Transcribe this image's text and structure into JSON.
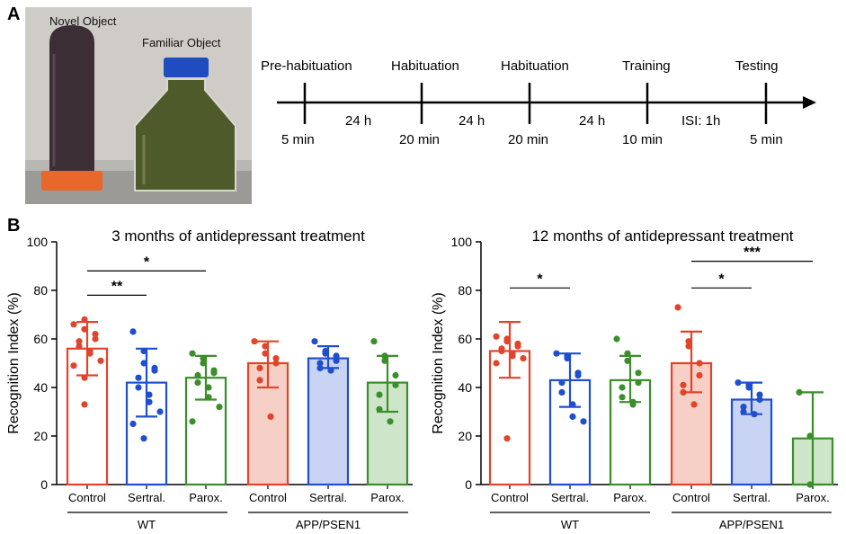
{
  "panel_a": {
    "label": "A",
    "photo": {
      "novel_label": "Novel Object",
      "familiar_label": "Familiar Object"
    },
    "timeline": {
      "events": [
        {
          "name": "Pre-habituation",
          "duration": "5 min"
        },
        {
          "name": "Habituation",
          "duration": "20 min"
        },
        {
          "name": "Habituation",
          "duration": "20 min"
        },
        {
          "name": "Training",
          "duration": "10 min"
        },
        {
          "name": "Testing",
          "duration": "5 min"
        }
      ],
      "intervals": [
        "24 h",
        "24 h",
        "24 h",
        "ISI: 1h"
      ]
    }
  },
  "panel_b": {
    "label": "B"
  },
  "colors": {
    "control": "#e0452b",
    "sertral": "#1f4fcf",
    "parox": "#3a8f2a",
    "control_fill": "#f6cfc6",
    "sertral_fill": "#c9d3f3",
    "parox_fill": "#cfe5c9"
  },
  "chart_data": [
    {
      "type": "bar",
      "title": "3 months of antidepressant treatment",
      "ylabel": "Recognition Index (%)",
      "ylim": [
        0,
        100
      ],
      "yticks": [
        0,
        20,
        40,
        60,
        80,
        100
      ],
      "categories": [
        "Control",
        "Sertral.",
        "Parox.",
        "Control",
        "Sertral.",
        "Parox."
      ],
      "groups": [
        {
          "label": "WT",
          "span": [
            0,
            2
          ]
        },
        {
          "label": "APP/PSEN1",
          "span": [
            3,
            5
          ]
        }
      ],
      "bars": [
        {
          "mean": 56,
          "sd_low": 45,
          "sd_high": 67,
          "color": "control",
          "filled": false,
          "points": [
            66,
            68,
            64,
            62,
            60,
            59,
            57,
            55,
            54,
            51,
            49,
            44,
            33
          ]
        },
        {
          "mean": 42,
          "sd_low": 28,
          "sd_high": 56,
          "color": "sertral",
          "filled": false,
          "points": [
            63,
            55,
            50,
            48,
            47,
            44,
            40,
            37,
            34,
            30,
            25,
            19
          ]
        },
        {
          "mean": 44,
          "sd_low": 35,
          "sd_high": 53,
          "color": "parox",
          "filled": false,
          "points": [
            54,
            52,
            50,
            47,
            46,
            45,
            42,
            40,
            36,
            32,
            26
          ]
        },
        {
          "mean": 50,
          "sd_low": 40,
          "sd_high": 59,
          "color": "control",
          "filled": true,
          "points": [
            59,
            57,
            54,
            52,
            50,
            48,
            43,
            28
          ]
        },
        {
          "mean": 52,
          "sd_low": 48,
          "sd_high": 57,
          "color": "sertral",
          "filled": true,
          "points": [
            59,
            55,
            54,
            53,
            51,
            50,
            48,
            47
          ]
        },
        {
          "mean": 42,
          "sd_low": 30,
          "sd_high": 53,
          "color": "parox",
          "filled": true,
          "points": [
            59,
            53,
            51,
            45,
            41,
            37,
            31,
            26
          ]
        }
      ],
      "significance": [
        {
          "from": 0,
          "to": 1,
          "label": "**",
          "y": 78
        },
        {
          "from": 0,
          "to": 2,
          "label": "*",
          "y": 88
        }
      ]
    },
    {
      "type": "bar",
      "title": "12 months of antidepressant treatment",
      "ylabel": "Recognition Index (%)",
      "ylim": [
        0,
        100
      ],
      "yticks": [
        0,
        20,
        40,
        60,
        80,
        100
      ],
      "categories": [
        "Control",
        "Sertral.",
        "Parox.",
        "Control",
        "Sertral.",
        "Parox."
      ],
      "groups": [
        {
          "label": "WT",
          "span": [
            0,
            2
          ]
        },
        {
          "label": "APP/PSEN1",
          "span": [
            3,
            5
          ]
        }
      ],
      "bars": [
        {
          "mean": 55,
          "sd_low": 44,
          "sd_high": 67,
          "color": "control",
          "filled": false,
          "points": [
            61,
            60,
            59,
            58,
            57,
            56,
            55,
            54,
            53,
            52,
            50,
            19
          ]
        },
        {
          "mean": 43,
          "sd_low": 32,
          "sd_high": 54,
          "color": "sertral",
          "filled": false,
          "points": [
            54,
            53,
            52,
            46,
            45,
            42,
            38,
            33,
            28,
            26
          ]
        },
        {
          "mean": 43,
          "sd_low": 34,
          "sd_high": 53,
          "color": "parox",
          "filled": false,
          "points": [
            60,
            54,
            51,
            46,
            42,
            40,
            36,
            34,
            33
          ]
        },
        {
          "mean": 50,
          "sd_low": 38,
          "sd_high": 63,
          "color": "control",
          "filled": true,
          "points": [
            73,
            59,
            57,
            50,
            45,
            41,
            38,
            33
          ]
        },
        {
          "mean": 35,
          "sd_low": 29,
          "sd_high": 42,
          "color": "sertral",
          "filled": true,
          "points": [
            42,
            41,
            40,
            37,
            35,
            32,
            30,
            29
          ]
        },
        {
          "mean": 19,
          "sd_low": 0,
          "sd_high": 38,
          "color": "parox",
          "filled": true,
          "points": [
            38,
            20,
            0
          ]
        }
      ],
      "significance": [
        {
          "from": 0,
          "to": 1,
          "label": "*",
          "y": 81
        },
        {
          "from": 3,
          "to": 4,
          "label": "*",
          "y": 81
        },
        {
          "from": 3,
          "to": 5,
          "label": "***",
          "y": 92
        }
      ]
    }
  ]
}
